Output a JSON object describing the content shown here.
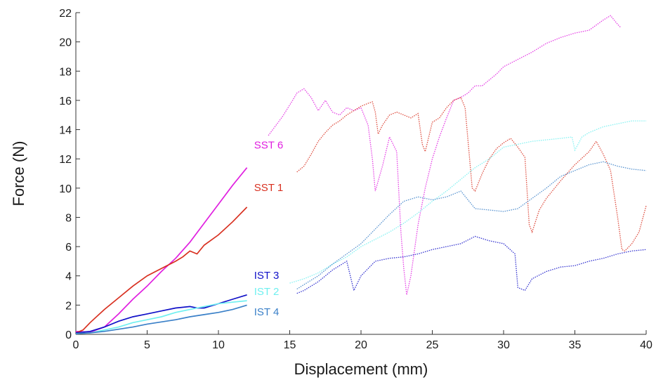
{
  "chart_data": {
    "type": "line",
    "title": "",
    "xlabel": "Displacement (mm)",
    "ylabel": "Force (N)",
    "xlim": [
      0,
      40
    ],
    "ylim": [
      0,
      22
    ],
    "xticks": [
      "0",
      "5",
      "10",
      "15",
      "20",
      "25",
      "30",
      "35",
      "40"
    ],
    "yticks": [
      "0",
      "2",
      "4",
      "6",
      "8",
      "10",
      "12",
      "14",
      "16",
      "18",
      "20",
      "22"
    ],
    "grid": false,
    "series": [
      {
        "name": "SST 6",
        "color": "#e020e0",
        "style": "solid",
        "points": [
          [
            0,
            0.2
          ],
          [
            1,
            0.15
          ],
          [
            2,
            0.5
          ],
          [
            3,
            1.4
          ],
          [
            4,
            2.4
          ],
          [
            5,
            3.3
          ],
          [
            6,
            4.3
          ],
          [
            7,
            5.2
          ],
          [
            8,
            6.3
          ],
          [
            9,
            7.6
          ],
          [
            10,
            8.9
          ],
          [
            11,
            10.2
          ],
          [
            12,
            11.4
          ]
        ]
      },
      {
        "name": "SST 1",
        "color": "#d83020",
        "style": "solid",
        "points": [
          [
            0,
            0.1
          ],
          [
            0.5,
            0.3
          ],
          [
            1,
            0.8
          ],
          [
            2,
            1.7
          ],
          [
            3,
            2.5
          ],
          [
            4,
            3.3
          ],
          [
            5,
            4.0
          ],
          [
            6,
            4.5
          ],
          [
            7,
            5.0
          ],
          [
            7.5,
            5.3
          ],
          [
            8,
            5.7
          ],
          [
            8.5,
            5.5
          ],
          [
            9,
            6.1
          ],
          [
            10,
            6.8
          ],
          [
            11,
            7.7
          ],
          [
            12,
            8.7
          ]
        ]
      },
      {
        "name": "IST 3",
        "color": "#1010c8",
        "style": "solid",
        "points": [
          [
            0,
            0.1
          ],
          [
            1,
            0.2
          ],
          [
            2,
            0.5
          ],
          [
            3,
            0.9
          ],
          [
            4,
            1.2
          ],
          [
            5,
            1.4
          ],
          [
            6,
            1.6
          ],
          [
            7,
            1.8
          ],
          [
            8,
            1.9
          ],
          [
            8.5,
            1.8
          ],
          [
            9,
            1.8
          ],
          [
            10,
            2.1
          ],
          [
            11,
            2.4
          ],
          [
            12,
            2.7
          ]
        ]
      },
      {
        "name": "IST 2",
        "color": "#70f0f0",
        "style": "solid",
        "points": [
          [
            0,
            0.05
          ],
          [
            1,
            0.1
          ],
          [
            2,
            0.3
          ],
          [
            3,
            0.5
          ],
          [
            4,
            0.8
          ],
          [
            5,
            1.0
          ],
          [
            6,
            1.2
          ],
          [
            7,
            1.5
          ],
          [
            8,
            1.7
          ],
          [
            9,
            1.9
          ],
          [
            10,
            2.1
          ],
          [
            11,
            2.2
          ],
          [
            12,
            2.3
          ]
        ]
      },
      {
        "name": "IST 4",
        "color": "#3a80c8",
        "style": "solid",
        "points": [
          [
            0,
            0.05
          ],
          [
            1,
            0.1
          ],
          [
            2,
            0.2
          ],
          [
            3,
            0.35
          ],
          [
            4,
            0.5
          ],
          [
            5,
            0.7
          ],
          [
            6,
            0.85
          ],
          [
            7,
            1.0
          ],
          [
            8,
            1.2
          ],
          [
            9,
            1.35
          ],
          [
            10,
            1.5
          ],
          [
            11,
            1.7
          ],
          [
            12,
            2.0
          ]
        ]
      },
      {
        "name": "",
        "color": "#e020e0",
        "style": "dotted",
        "points": [
          [
            13.5,
            13.6
          ],
          [
            14.5,
            14.9
          ],
          [
            15.2,
            16.0
          ],
          [
            15.5,
            16.5
          ],
          [
            16,
            16.8
          ],
          [
            16.5,
            16.2
          ],
          [
            17,
            15.3
          ],
          [
            17.5,
            16.0
          ],
          [
            18,
            15.2
          ],
          [
            18.5,
            15.0
          ],
          [
            19,
            15.5
          ],
          [
            19.5,
            15.3
          ],
          [
            20,
            15.5
          ],
          [
            20.5,
            14.3
          ],
          [
            20.8,
            12.0
          ],
          [
            21,
            9.8
          ],
          [
            21.5,
            11.5
          ],
          [
            22,
            13.5
          ],
          [
            22.5,
            12.5
          ],
          [
            22.8,
            7.0
          ],
          [
            23,
            4.5
          ],
          [
            23.2,
            2.7
          ],
          [
            23.5,
            4.0
          ],
          [
            24,
            7.5
          ],
          [
            24.5,
            10.0
          ],
          [
            25,
            12.0
          ],
          [
            25.5,
            13.5
          ],
          [
            26,
            14.8
          ],
          [
            26.5,
            16.0
          ],
          [
            27,
            16.2
          ],
          [
            27.5,
            16.5
          ],
          [
            28,
            17.0
          ],
          [
            28.5,
            17.0
          ],
          [
            29,
            17.4
          ],
          [
            29.5,
            17.8
          ],
          [
            30,
            18.3
          ],
          [
            31,
            18.8
          ],
          [
            32,
            19.3
          ],
          [
            33,
            19.9
          ],
          [
            34,
            20.3
          ],
          [
            35,
            20.6
          ],
          [
            36,
            20.8
          ],
          [
            37,
            21.5
          ],
          [
            37.5,
            21.8
          ],
          [
            38,
            21.2
          ],
          [
            38.2,
            21.0
          ]
        ]
      },
      {
        "name": "",
        "color": "#d83020",
        "style": "dotted",
        "points": [
          [
            15.5,
            11.1
          ],
          [
            16,
            11.5
          ],
          [
            16.5,
            12.3
          ],
          [
            17,
            13.2
          ],
          [
            17.5,
            13.8
          ],
          [
            18,
            14.3
          ],
          [
            18.5,
            14.6
          ],
          [
            19,
            15.0
          ],
          [
            19.5,
            15.3
          ],
          [
            20,
            15.6
          ],
          [
            20.5,
            15.8
          ],
          [
            20.8,
            15.9
          ],
          [
            21,
            15.2
          ],
          [
            21.2,
            13.7
          ],
          [
            21.5,
            14.3
          ],
          [
            22,
            15.0
          ],
          [
            22.5,
            15.2
          ],
          [
            23,
            15.0
          ],
          [
            23.5,
            14.8
          ],
          [
            24,
            15.1
          ],
          [
            24.3,
            13.0
          ],
          [
            24.5,
            12.5
          ],
          [
            25,
            14.5
          ],
          [
            25.5,
            14.8
          ],
          [
            26,
            15.5
          ],
          [
            26.5,
            16.0
          ],
          [
            27,
            16.2
          ],
          [
            27.3,
            15.5
          ],
          [
            27.8,
            10.0
          ],
          [
            28,
            9.8
          ],
          [
            28.5,
            11.0
          ],
          [
            29,
            12.0
          ],
          [
            29.5,
            12.7
          ],
          [
            30,
            13.1
          ],
          [
            30.5,
            13.4
          ],
          [
            31,
            12.8
          ],
          [
            31.5,
            12.1
          ],
          [
            31.8,
            7.5
          ],
          [
            32,
            7.0
          ],
          [
            32.5,
            8.5
          ],
          [
            33,
            9.3
          ],
          [
            34,
            10.5
          ],
          [
            35,
            11.6
          ],
          [
            36,
            12.5
          ],
          [
            36.5,
            13.2
          ],
          [
            37,
            12.3
          ],
          [
            37.5,
            11.2
          ],
          [
            38,
            8.0
          ],
          [
            38.3,
            5.8
          ],
          [
            38.5,
            5.7
          ],
          [
            39,
            6.2
          ],
          [
            39.5,
            7.0
          ],
          [
            40,
            8.8
          ]
        ]
      },
      {
        "name": "",
        "color": "#1010c8",
        "style": "dotted",
        "points": [
          [
            15.5,
            2.8
          ],
          [
            16,
            3.0
          ],
          [
            17,
            3.6
          ],
          [
            18,
            4.4
          ],
          [
            19,
            5.0
          ],
          [
            19.5,
            3.0
          ],
          [
            20,
            4.0
          ],
          [
            21,
            5.0
          ],
          [
            22,
            5.2
          ],
          [
            23,
            5.3
          ],
          [
            24,
            5.5
          ],
          [
            25,
            5.8
          ],
          [
            26,
            6.0
          ],
          [
            27,
            6.2
          ],
          [
            28,
            6.7
          ],
          [
            29,
            6.4
          ],
          [
            30,
            6.2
          ],
          [
            30.8,
            5.5
          ],
          [
            31,
            3.2
          ],
          [
            31.5,
            3.0
          ],
          [
            32,
            3.8
          ],
          [
            33,
            4.3
          ],
          [
            34,
            4.6
          ],
          [
            35,
            4.7
          ],
          [
            36,
            5.0
          ],
          [
            37,
            5.2
          ],
          [
            38,
            5.5
          ],
          [
            39,
            5.7
          ],
          [
            40,
            5.8
          ]
        ]
      },
      {
        "name": "",
        "color": "#70f0f0",
        "style": "dotted",
        "points": [
          [
            15,
            3.5
          ],
          [
            16,
            3.8
          ],
          [
            17,
            4.2
          ],
          [
            18,
            4.8
          ],
          [
            19,
            5.3
          ],
          [
            20,
            6.0
          ],
          [
            21,
            6.5
          ],
          [
            22,
            7.0
          ],
          [
            23,
            7.6
          ],
          [
            24,
            8.3
          ],
          [
            25,
            9.1
          ],
          [
            26,
            9.8
          ],
          [
            27,
            10.6
          ],
          [
            28,
            11.4
          ],
          [
            29,
            12.0
          ],
          [
            30,
            12.8
          ],
          [
            31,
            13.0
          ],
          [
            32,
            13.2
          ],
          [
            33,
            13.3
          ],
          [
            34,
            13.4
          ],
          [
            34.8,
            13.5
          ],
          [
            35,
            12.6
          ],
          [
            35.5,
            13.5
          ],
          [
            36,
            13.8
          ],
          [
            37,
            14.2
          ],
          [
            38,
            14.4
          ],
          [
            39,
            14.6
          ],
          [
            40,
            14.6
          ]
        ]
      },
      {
        "name": "",
        "color": "#3a80c8",
        "style": "dotted",
        "points": [
          [
            15.5,
            3.1
          ],
          [
            16,
            3.4
          ],
          [
            17,
            4.0
          ],
          [
            18,
            4.8
          ],
          [
            19,
            5.5
          ],
          [
            20,
            6.2
          ],
          [
            21,
            7.2
          ],
          [
            22,
            8.2
          ],
          [
            23,
            9.1
          ],
          [
            24,
            9.4
          ],
          [
            25,
            9.2
          ],
          [
            26,
            9.4
          ],
          [
            27,
            9.8
          ],
          [
            28,
            8.6
          ],
          [
            29,
            8.5
          ],
          [
            30,
            8.4
          ],
          [
            31,
            8.6
          ],
          [
            32,
            9.3
          ],
          [
            33,
            10.0
          ],
          [
            34,
            10.8
          ],
          [
            35,
            11.2
          ],
          [
            36,
            11.6
          ],
          [
            37,
            11.8
          ],
          [
            38,
            11.5
          ],
          [
            39,
            11.3
          ],
          [
            40,
            11.2
          ]
        ]
      }
    ],
    "annotations": [
      {
        "text": "SST 6",
        "x": 12.5,
        "y": 12.7,
        "color": "#e020e0"
      },
      {
        "text": "SST 1",
        "x": 12.5,
        "y": 9.8,
        "color": "#d83020"
      },
      {
        "text": "IST 3",
        "x": 12.5,
        "y": 3.8,
        "color": "#1010c8"
      },
      {
        "text": "IST 2",
        "x": 12.5,
        "y": 2.7,
        "color": "#70f0f0"
      },
      {
        "text": "IST 4",
        "x": 12.5,
        "y": 1.3,
        "color": "#3a80c8"
      }
    ]
  }
}
